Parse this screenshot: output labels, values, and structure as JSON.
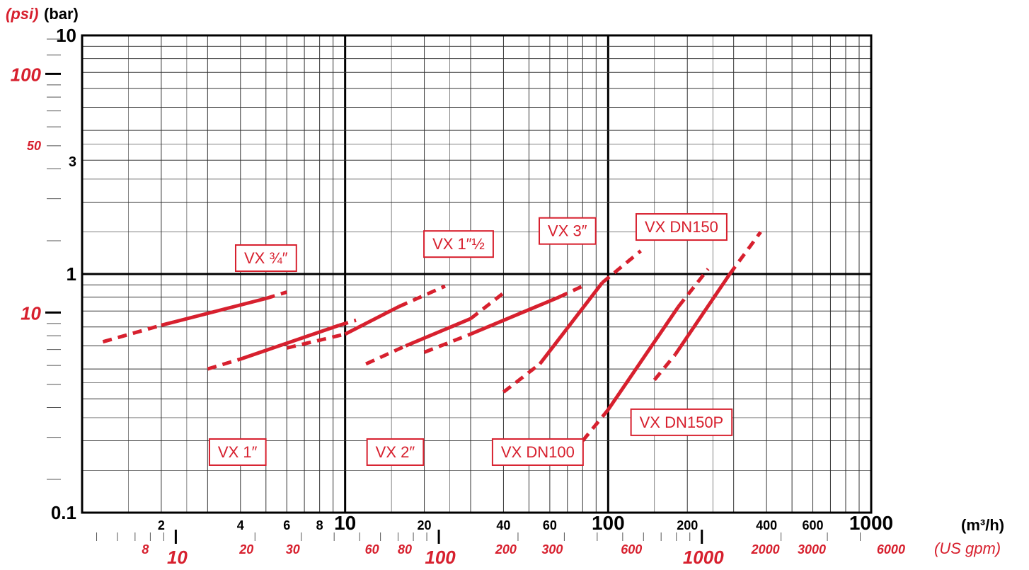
{
  "chart_data": {
    "type": "line",
    "title": "",
    "xlabel": "(m³/h)",
    "x2label": "(US gpm)",
    "ylabel": "(bar)",
    "y2label": "(psi)",
    "x_scale": "log",
    "y_scale": "log",
    "xlim": [
      1,
      1000
    ],
    "ylim": [
      0.1,
      10
    ],
    "grid": true,
    "colors": {
      "series": "#d7202e",
      "secondary_axis": "#d7202e",
      "primary_axis": "#000000",
      "grid_major": "#000000",
      "grid_minor": "#333333"
    },
    "x_ticks": [
      {
        "value": 2,
        "label": "2"
      },
      {
        "value": 4,
        "label": "4"
      },
      {
        "value": 6,
        "label": "6"
      },
      {
        "value": 8,
        "label": "8"
      },
      {
        "value": 10,
        "label": "10",
        "major": true
      },
      {
        "value": 20,
        "label": "20"
      },
      {
        "value": 40,
        "label": "40"
      },
      {
        "value": 60,
        "label": "60"
      },
      {
        "value": 100,
        "label": "100",
        "major": true
      },
      {
        "value": 200,
        "label": "200"
      },
      {
        "value": 400,
        "label": "400"
      },
      {
        "value": 600,
        "label": "600"
      },
      {
        "value": 1000,
        "label": "1000",
        "major": true
      }
    ],
    "y_ticks": [
      {
        "value": 10,
        "label": "10"
      },
      {
        "value": 3,
        "label": "3"
      },
      {
        "value": 1,
        "label": "1"
      },
      {
        "value": 0.1,
        "label": "0.1"
      }
    ],
    "x2_ticks": [
      {
        "value": 8,
        "label": "8"
      },
      {
        "value": 10,
        "label": "10",
        "major": true
      },
      {
        "value": 20,
        "label": "20"
      },
      {
        "value": 30,
        "label": "30"
      },
      {
        "value": 60,
        "label": "60"
      },
      {
        "value": 80,
        "label": "80"
      },
      {
        "value": 100,
        "label": "100",
        "major": true
      },
      {
        "value": 200,
        "label": "200"
      },
      {
        "value": 300,
        "label": "300"
      },
      {
        "value": 600,
        "label": "600"
      },
      {
        "value": 1000,
        "label": "1000",
        "major": true
      },
      {
        "value": 2000,
        "label": "2000"
      },
      {
        "value": 3000,
        "label": "3000"
      },
      {
        "value": 6000,
        "label": "6000"
      }
    ],
    "y2_ticks": [
      {
        "value": 100,
        "label": "100",
        "major": true
      },
      {
        "value": 50,
        "label": "50"
      },
      {
        "value": 10,
        "label": "10",
        "major": true
      }
    ],
    "series": [
      {
        "name": "VX ¾″",
        "line_style": "solid with dashed extensions",
        "dashed_start": [
          1.2,
          0.52
        ],
        "solid_start": [
          2.0,
          0.61
        ],
        "solid_end": [
          5.0,
          0.79
        ],
        "dashed_end": [
          6.0,
          0.84
        ]
      },
      {
        "name": "VX 1″",
        "line_style": "solid with dashed extensions",
        "dashed_start": [
          3.0,
          0.4
        ],
        "solid_start": [
          4.0,
          0.44
        ],
        "solid_end": [
          9.5,
          0.61
        ],
        "dashed_end": [
          11.0,
          0.64
        ]
      },
      {
        "name": "VX 1″½",
        "line_style": "solid with dashed extensions",
        "dashed_start": [
          6.0,
          0.49
        ],
        "solid_start": [
          10.0,
          0.56
        ],
        "solid_end": [
          16.0,
          0.73
        ],
        "dashed_end": [
          24.0,
          0.89
        ]
      },
      {
        "name": "VX 2″",
        "line_style": "solid with dashed extensions",
        "dashed_start": [
          12.0,
          0.42
        ],
        "solid_start": [
          17.0,
          0.5
        ],
        "solid_end": [
          30.0,
          0.65
        ],
        "dashed_end": [
          41.0,
          0.85
        ]
      },
      {
        "name": "VX 3″",
        "line_style": "solid with dashed extensions",
        "dashed_start": [
          20.0,
          0.47
        ],
        "solid_start": [
          30.0,
          0.56
        ],
        "solid_end": [
          65.0,
          0.8
        ],
        "dashed_end": [
          80.0,
          0.89
        ]
      },
      {
        "name": "VX DN100",
        "line_style": "solid with dashed extensions",
        "dashed_start": [
          40.0,
          0.32
        ],
        "solid_start": [
          55.0,
          0.42
        ],
        "solid_end": [
          95.0,
          0.92
        ],
        "dashed_end": [
          133.0,
          1.25
        ]
      },
      {
        "name": "VX DN150",
        "line_style": "solid with dashed extensions",
        "dashed_start": [
          80.0,
          0.2
        ],
        "solid_start": [
          100.0,
          0.27
        ],
        "solid_end": [
          185.0,
          0.73
        ],
        "dashed_end": [
          240.0,
          1.05
        ]
      },
      {
        "name": "VX DN150P",
        "line_style": "solid with dashed extensions",
        "dashed_start": [
          150.0,
          0.36
        ],
        "solid_start": [
          180.0,
          0.46
        ],
        "solid_end": [
          290.0,
          1.0
        ],
        "dashed_end": [
          380.0,
          1.5
        ]
      }
    ],
    "series_labels": [
      {
        "name": "VX ¾″",
        "anchor": [
          5.0,
          1.17
        ]
      },
      {
        "name": "VX 1″",
        "anchor": [
          3.9,
          0.18
        ]
      },
      {
        "name": "VX 1″½",
        "anchor": [
          27.0,
          1.34
        ]
      },
      {
        "name": "VX 2″",
        "anchor": [
          15.5,
          0.18
        ]
      },
      {
        "name": "VX 3″",
        "anchor": [
          70.0,
          1.52
        ]
      },
      {
        "name": "VX DN100",
        "anchor": [
          54.0,
          0.18
        ]
      },
      {
        "name": "VX DN150",
        "anchor": [
          190.0,
          1.58
        ]
      },
      {
        "name": "VX DN150P",
        "anchor": [
          190.0,
          0.24
        ]
      }
    ]
  }
}
